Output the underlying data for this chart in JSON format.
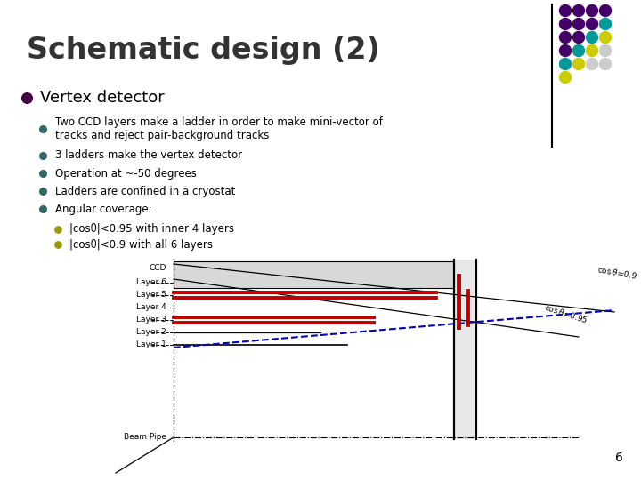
{
  "title": "Schematic design (2)",
  "bullet_main": "Vertex detector",
  "bullets": [
    "Two CCD layers make a ladder in order to make mini-vector of\ntracks and reject pair-background tracks",
    "3 ladders make the vertex detector",
    "Operation at ~-50 degrees",
    "Ladders are confined in a cryostat",
    "Angular coverage:"
  ],
  "sub_bullets": [
    "|cosθ|<0.95 with inner 4 layers",
    "|cosθ|<0.9 with all 6 layers"
  ],
  "page_number": "6",
  "bg_color": "#ffffff",
  "title_color": "#333333",
  "main_bullet_color": "#440044",
  "sub_bullet_color1": "#336666",
  "sub_bullet_color2": "#999900",
  "dot_grid": {
    "grid": [
      [
        "#440066",
        "#440066",
        "#440066",
        "#440066"
      ],
      [
        "#440066",
        "#440066",
        "#440066",
        "#009999"
      ],
      [
        "#440066",
        "#440066",
        "#009999",
        "#cccc00"
      ],
      [
        "#440066",
        "#009999",
        "#cccc00",
        "#cccccc"
      ],
      [
        "#009999",
        "#cccc00",
        "#cccccc",
        "#cccccc"
      ],
      [
        "#cccc00",
        "#cccccc",
        "#cccccc",
        "#cccccc"
      ],
      [
        "#cccccc",
        "#cccccc",
        "#cccccc",
        "#cccccc"
      ]
    ]
  }
}
